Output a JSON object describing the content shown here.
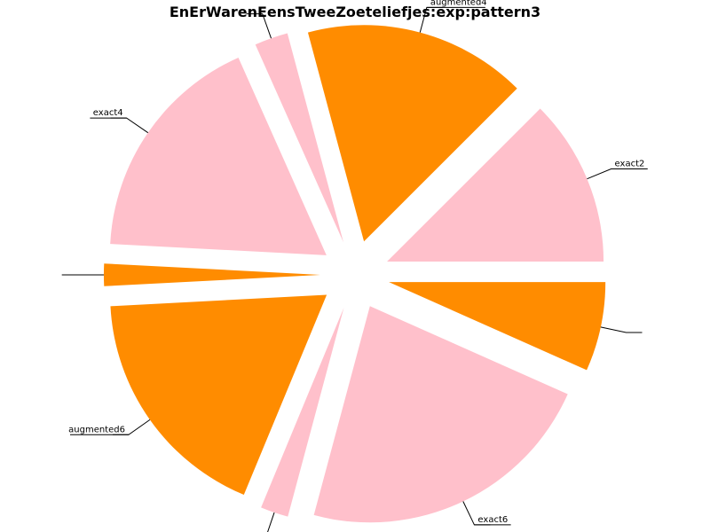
{
  "chart_data": {
    "type": "pie",
    "title": "EnErWarenEensTweeZoeteliefjes:exp:pattern3",
    "start_angle_deg": 0,
    "direction": "counterclockwise",
    "exploded": true,
    "slices": [
      {
        "label": "exact2",
        "value": 12.5,
        "color": "#ffc0cb"
      },
      {
        "label": "augmented4",
        "value": 16.67,
        "color": "#ff8c00"
      },
      {
        "label": "",
        "value": 2.5,
        "color": "#ffc0cb"
      },
      {
        "label": "exact4",
        "value": 17.5,
        "color": "#ffc0cb"
      },
      {
        "label": "",
        "value": 1.67,
        "color": "#ff8c00"
      },
      {
        "label": "augmented6",
        "value": 17.92,
        "color": "#ff8c00"
      },
      {
        "label": "",
        "value": 2.08,
        "color": "#ffc0cb"
      },
      {
        "label": "exact6",
        "value": 22.5,
        "color": "#ffc0cb"
      },
      {
        "label": "",
        "value": 6.67,
        "color": "#ff8c00"
      }
    ]
  }
}
